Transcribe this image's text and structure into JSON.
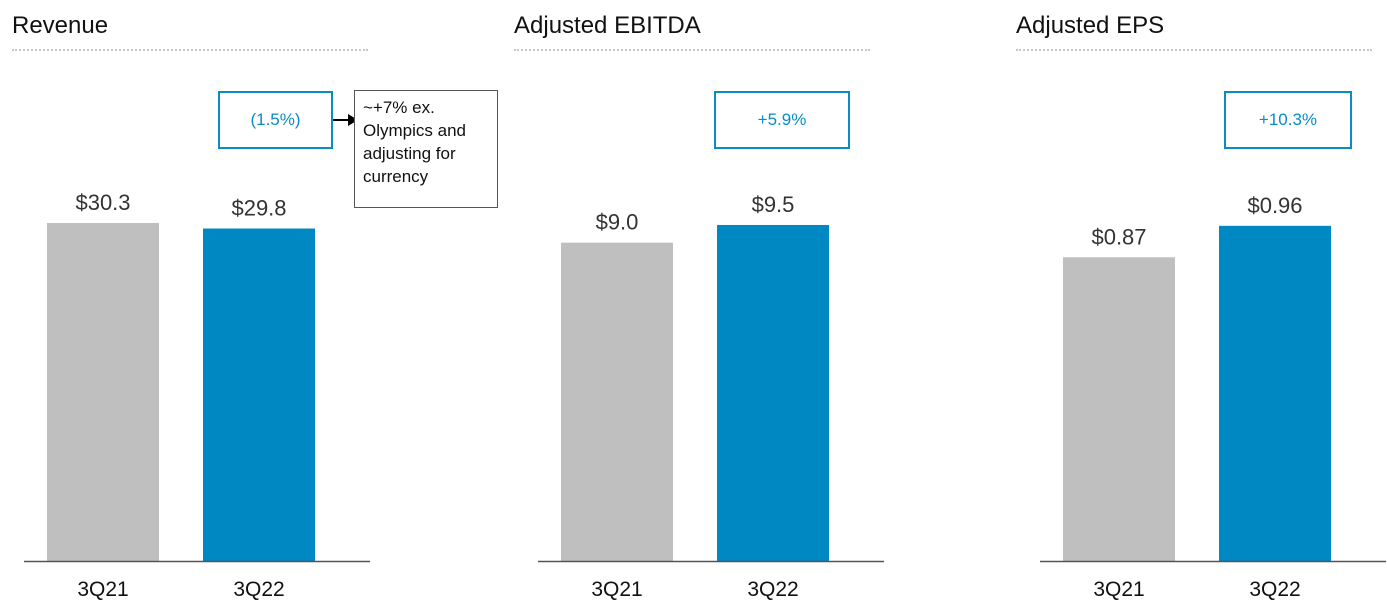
{
  "colors": {
    "prior_period": "#bfbfbf",
    "current_period": "#0088c2",
    "change_box": "#0a8cc4",
    "axis": "#555555",
    "title_rule": "#c8c8c8"
  },
  "chart_data": [
    {
      "type": "bar",
      "title": "Revenue",
      "categories": [
        "3Q21",
        "3Q22"
      ],
      "values": [
        30.3,
        29.8
      ],
      "data_labels": [
        "$30.3",
        "$29.8"
      ],
      "ylim": [
        0,
        36.3
      ],
      "grid": false,
      "change_label": "(1.5%)",
      "note": "~+7% ex.\nOlympics and\nadjusting for\ncurrency"
    },
    {
      "type": "bar",
      "title": "Adjusted EBITDA",
      "categories": [
        "3Q21",
        "3Q22"
      ],
      "values": [
        9.0,
        9.5
      ],
      "data_labels": [
        "$9.0",
        "$9.5"
      ],
      "ylim": [
        0,
        11.45
      ],
      "grid": false,
      "change_label": "+5.9%"
    },
    {
      "type": "bar",
      "title": "Adjusted EPS",
      "categories": [
        "3Q21",
        "3Q22"
      ],
      "values": [
        0.87,
        0.96
      ],
      "data_labels": [
        "$0.87",
        "$0.96"
      ],
      "ylim": [
        0,
        1.16
      ],
      "grid": false,
      "change_label": "+10.3%"
    }
  ]
}
